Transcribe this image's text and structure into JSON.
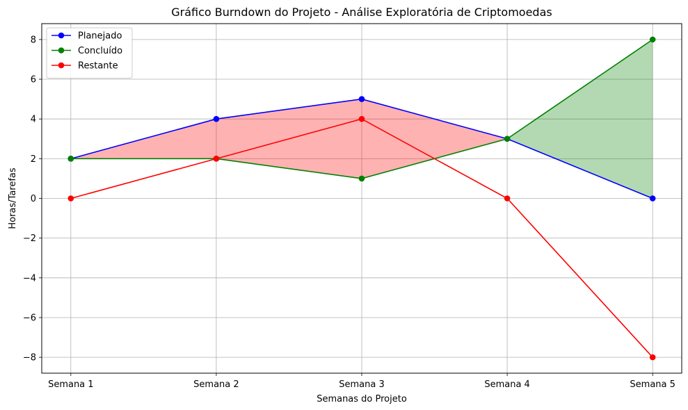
{
  "chart_data": {
    "type": "line",
    "title": "Gráfico Burndown do Projeto - Análise Exploratória de Criptomoedas",
    "xlabel": "Semanas do Projeto",
    "ylabel": "Horas/Tarefas",
    "categories": [
      "Semana 1",
      "Semana 2",
      "Semana 3",
      "Semana 4",
      "Semana 5"
    ],
    "ylim": [
      -8.8,
      8.8
    ],
    "yticks": [
      -8,
      -6,
      -4,
      -2,
      0,
      2,
      4,
      6,
      8
    ],
    "ytick_labels": [
      "−8",
      "−6",
      "−4",
      "−2",
      "0",
      "2",
      "4",
      "6",
      "8"
    ],
    "grid": true,
    "legend_position": "top-left",
    "series": [
      {
        "name": "Planejado",
        "values": [
          2,
          4,
          5,
          3,
          0
        ],
        "color": "#0000ff"
      },
      {
        "name": "Concluído",
        "values": [
          2,
          2,
          1,
          3,
          8
        ],
        "color": "#008000"
      },
      {
        "name": "Restante",
        "values": [
          0,
          2,
          4,
          0,
          -8
        ],
        "color": "#ff0000"
      }
    ],
    "fill_between": {
      "series": [
        "Planejado",
        "Concluído"
      ],
      "ahead_color": "#008000",
      "behind_color": "#ff0000",
      "alpha": 0.3
    }
  }
}
